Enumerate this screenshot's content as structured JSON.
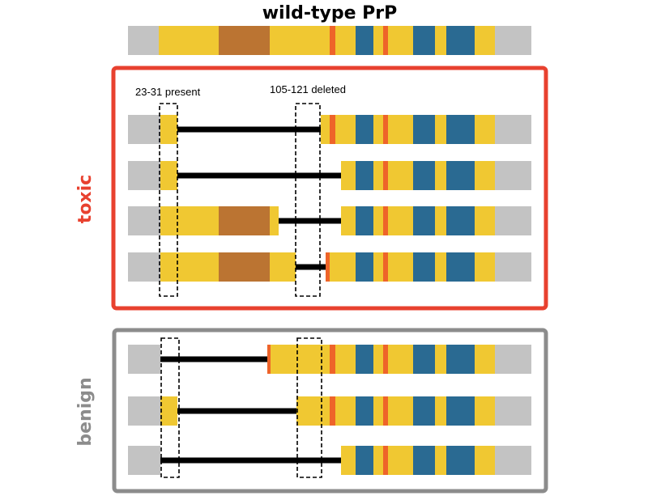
{
  "title": "wild-type PrP",
  "colors": {
    "grey": "#c3c3c3",
    "yellow": "#f0c832",
    "brown": "#bb7432",
    "orange": "#ee6429",
    "blue": "#2a6a92",
    "linker": "#000000",
    "toxic_border": "#e8412f",
    "benign_border": "#8c8c8c"
  },
  "wild_type": {
    "segments": [
      [
        "grey",
        158,
        196
      ],
      [
        "yellow",
        196,
        270
      ],
      [
        "brown",
        270,
        333
      ],
      [
        "yellow",
        333,
        407
      ],
      [
        "orange",
        407,
        414
      ],
      [
        "yellow",
        414,
        439
      ],
      [
        "blue",
        439,
        461
      ],
      [
        "yellow",
        461,
        473
      ],
      [
        "orange",
        473,
        479
      ],
      [
        "yellow",
        479,
        510
      ],
      [
        "blue",
        510,
        537
      ],
      [
        "yellow",
        537,
        551
      ],
      [
        "blue",
        551,
        586
      ],
      [
        "yellow",
        586,
        611
      ],
      [
        "grey",
        611,
        656
      ]
    ]
  },
  "groups": {
    "toxic": {
      "label": "toxic",
      "annotations": {
        "present": "23-31 present",
        "deleted": "105-121 deleted"
      },
      "constructs": [
        {
          "name": "toxic-construct-1",
          "segments": [
            [
              "grey",
              158,
              198
            ],
            [
              "yellow",
              198,
              219
            ],
            [
              "yellow",
              396,
              407
            ],
            [
              "orange",
              407,
              414
            ],
            [
              "yellow",
              414,
              439
            ],
            [
              "blue",
              439,
              461
            ],
            [
              "yellow",
              461,
              473
            ],
            [
              "orange",
              473,
              479
            ],
            [
              "yellow",
              479,
              510
            ],
            [
              "blue",
              510,
              537
            ],
            [
              "yellow",
              537,
              551
            ],
            [
              "blue",
              551,
              586
            ],
            [
              "yellow",
              586,
              611
            ],
            [
              "grey",
              611,
              656
            ]
          ],
          "linker": [
            219,
            396
          ]
        },
        {
          "name": "toxic-construct-2",
          "segments": [
            [
              "grey",
              158,
              198
            ],
            [
              "yellow",
              198,
              219
            ],
            [
              "yellow",
              421,
              439
            ],
            [
              "blue",
              439,
              461
            ],
            [
              "yellow",
              461,
              473
            ],
            [
              "orange",
              473,
              479
            ],
            [
              "yellow",
              479,
              510
            ],
            [
              "blue",
              510,
              537
            ],
            [
              "yellow",
              537,
              551
            ],
            [
              "blue",
              551,
              586
            ],
            [
              "yellow",
              586,
              611
            ],
            [
              "grey",
              611,
              656
            ]
          ],
          "linker": [
            219,
            421
          ]
        },
        {
          "name": "toxic-construct-3",
          "segments": [
            [
              "grey",
              158,
              198
            ],
            [
              "yellow",
              198,
              270
            ],
            [
              "brown",
              270,
              333
            ],
            [
              "yellow",
              333,
              344
            ],
            [
              "yellow",
              421,
              439
            ],
            [
              "blue",
              439,
              461
            ],
            [
              "yellow",
              461,
              473
            ],
            [
              "orange",
              473,
              479
            ],
            [
              "yellow",
              479,
              510
            ],
            [
              "blue",
              510,
              537
            ],
            [
              "yellow",
              537,
              551
            ],
            [
              "blue",
              551,
              586
            ],
            [
              "yellow",
              586,
              611
            ],
            [
              "grey",
              611,
              656
            ]
          ],
          "linker": [
            344,
            421
          ]
        },
        {
          "name": "toxic-construct-4",
          "segments": [
            [
              "grey",
              158,
              198
            ],
            [
              "yellow",
              198,
              270
            ],
            [
              "brown",
              270,
              333
            ],
            [
              "yellow",
              333,
              365
            ],
            [
              "orange",
              402,
              407
            ],
            [
              "yellow",
              407,
              414
            ],
            [
              "yellow",
              414,
              439
            ],
            [
              "blue",
              439,
              461
            ],
            [
              "yellow",
              461,
              473
            ],
            [
              "orange",
              473,
              479
            ],
            [
              "yellow",
              479,
              510
            ],
            [
              "blue",
              510,
              537
            ],
            [
              "yellow",
              537,
              551
            ],
            [
              "blue",
              551,
              586
            ],
            [
              "yellow",
              586,
              611
            ],
            [
              "grey",
              611,
              656
            ]
          ],
          "linker": [
            365,
            402
          ]
        }
      ]
    },
    "benign": {
      "label": "benign",
      "constructs": [
        {
          "name": "benign-construct-1",
          "segments": [
            [
              "grey",
              158,
              198
            ],
            [
              "orange",
              330,
              334
            ],
            [
              "yellow",
              334,
              407
            ],
            [
              "orange",
              407,
              414
            ],
            [
              "yellow",
              414,
              439
            ],
            [
              "blue",
              439,
              461
            ],
            [
              "yellow",
              461,
              473
            ],
            [
              "orange",
              473,
              479
            ],
            [
              "yellow",
              479,
              510
            ],
            [
              "blue",
              510,
              537
            ],
            [
              "yellow",
              537,
              551
            ],
            [
              "blue",
              551,
              586
            ],
            [
              "yellow",
              586,
              611
            ],
            [
              "grey",
              611,
              656
            ]
          ],
          "linker": [
            198,
            330
          ]
        },
        {
          "name": "benign-construct-2",
          "segments": [
            [
              "grey",
              158,
              198
            ],
            [
              "yellow",
              198,
              219
            ],
            [
              "yellow",
              366,
              407
            ],
            [
              "orange",
              407,
              414
            ],
            [
              "yellow",
              414,
              439
            ],
            [
              "blue",
              439,
              461
            ],
            [
              "yellow",
              461,
              473
            ],
            [
              "orange",
              473,
              479
            ],
            [
              "yellow",
              479,
              510
            ],
            [
              "blue",
              510,
              537
            ],
            [
              "yellow",
              537,
              551
            ],
            [
              "blue",
              551,
              586
            ],
            [
              "yellow",
              586,
              611
            ],
            [
              "grey",
              611,
              656
            ]
          ],
          "linker": [
            219,
            366
          ]
        },
        {
          "name": "benign-construct-3",
          "segments": [
            [
              "grey",
              158,
              198
            ],
            [
              "yellow",
              421,
              439
            ],
            [
              "blue",
              439,
              461
            ],
            [
              "yellow",
              461,
              473
            ],
            [
              "orange",
              473,
              479
            ],
            [
              "yellow",
              479,
              510
            ],
            [
              "blue",
              510,
              537
            ],
            [
              "yellow",
              537,
              551
            ],
            [
              "blue",
              551,
              586
            ],
            [
              "yellow",
              586,
              611
            ],
            [
              "grey",
              611,
              656
            ]
          ],
          "linker": [
            198,
            421
          ]
        }
      ]
    }
  }
}
